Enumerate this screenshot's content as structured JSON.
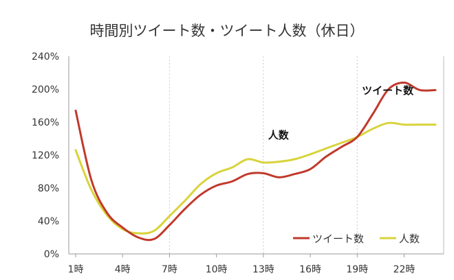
{
  "chart_data": {
    "type": "line",
    "title": "時間別ツイート数・ツイート人数（休日）",
    "xlabel": "",
    "ylabel": "",
    "x": [
      1,
      2,
      3,
      4,
      5,
      6,
      7,
      8,
      9,
      10,
      11,
      12,
      13,
      14,
      15,
      16,
      17,
      18,
      19,
      20,
      21,
      22,
      23,
      24
    ],
    "x_ticks": [
      {
        "x": 1,
        "label": "1時"
      },
      {
        "x": 4,
        "label": "4時"
      },
      {
        "x": 7,
        "label": "7時"
      },
      {
        "x": 10,
        "label": "10時"
      },
      {
        "x": 13,
        "label": "13時"
      },
      {
        "x": 16,
        "label": "16時"
      },
      {
        "x": 19,
        "label": "19時"
      },
      {
        "x": 22,
        "label": "22時"
      }
    ],
    "ylim": [
      0,
      240
    ],
    "y_ticks": [
      "0%",
      "40%",
      "80%",
      "120%",
      "160%",
      "200%",
      "240%"
    ],
    "y_tick_values": [
      0,
      40,
      80,
      120,
      160,
      200,
      240
    ],
    "grid": "vertical-dashed",
    "legend_position": "bottom-right",
    "series": [
      {
        "name": "ツイート数",
        "color": "#c0392b",
        "values": [
          174,
          90,
          50,
          32,
          20,
          18,
          35,
          55,
          72,
          83,
          88,
          97,
          98,
          93,
          97,
          103,
          118,
          130,
          142,
          170,
          200,
          208,
          199,
          199
        ]
      },
      {
        "name": "人数",
        "color": "#d8d33a",
        "values": [
          126,
          78,
          47,
          30,
          25,
          28,
          46,
          65,
          85,
          98,
          105,
          115,
          111,
          112,
          115,
          121,
          128,
          135,
          142,
          152,
          159,
          157,
          157,
          157
        ]
      }
    ],
    "annotations": [
      {
        "text": "ツイート数",
        "x": 19.3,
        "y": 194
      },
      {
        "text": "人数",
        "x": 13.3,
        "y": 140
      }
    ]
  }
}
